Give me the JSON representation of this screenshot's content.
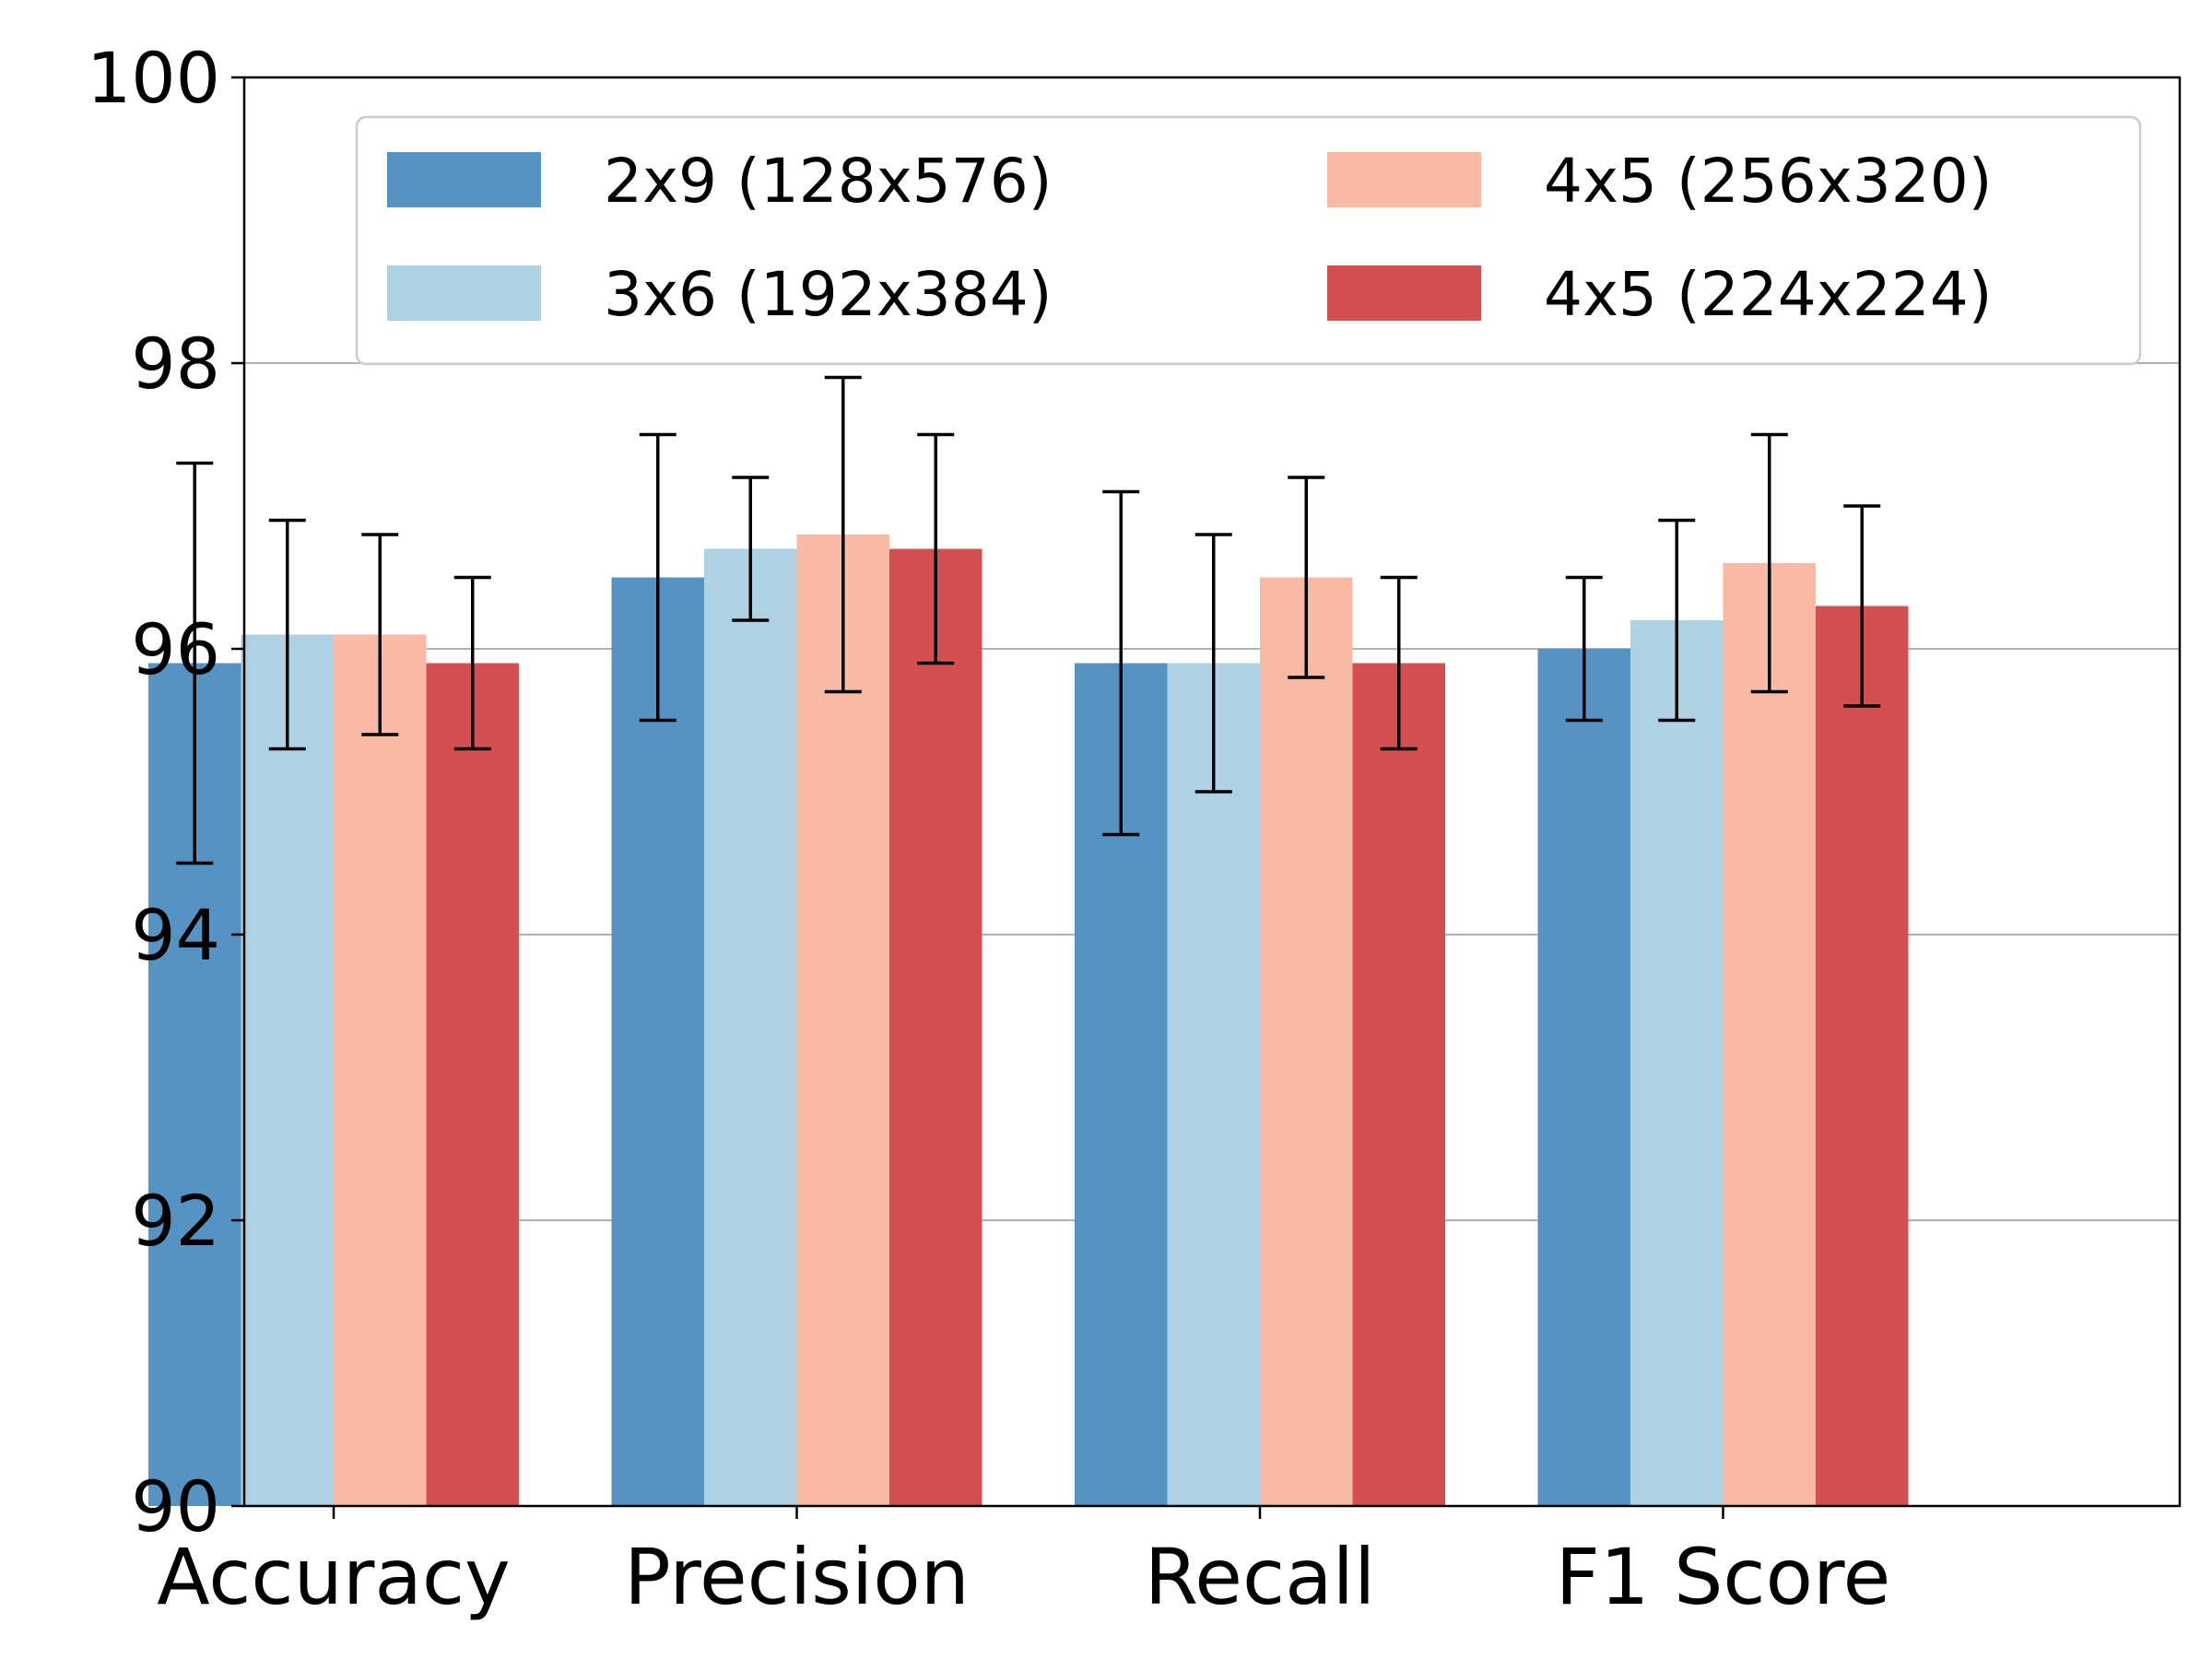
{
  "chart_data": {
    "type": "bar",
    "title": "",
    "xlabel": "",
    "ylabel": "",
    "categories": [
      "Accuracy",
      "Precision",
      "Recall",
      "F1 Score"
    ],
    "ylim": [
      90,
      100
    ],
    "yticks": [
      90,
      92,
      94,
      96,
      98,
      100
    ],
    "grid": "y",
    "legend_position": "top",
    "legend_columns": 2,
    "series": [
      {
        "name": "2x9 (128x576)",
        "color": "#5493c4",
        "values": [
          95.9,
          96.5,
          95.9,
          96.0
        ],
        "err_low": [
          94.5,
          95.5,
          94.7,
          95.5
        ],
        "err_high": [
          97.3,
          97.5,
          97.1,
          96.5
        ]
      },
      {
        "name": "3x6 (192x384)",
        "color": "#aed2e3",
        "values": [
          96.1,
          96.7,
          95.9,
          96.2
        ],
        "err_low": [
          95.3,
          96.2,
          95.0,
          95.5
        ],
        "err_high": [
          96.9,
          97.2,
          96.8,
          96.9
        ]
      },
      {
        "name": "4x5 (256x320)",
        "color": "#f8baa4",
        "values": [
          96.1,
          96.8,
          96.5,
          96.6
        ],
        "err_low": [
          95.4,
          95.7,
          95.8,
          95.7
        ],
        "err_high": [
          96.8,
          97.9,
          97.2,
          97.5
        ]
      },
      {
        "name": "4x5 (224x224)",
        "color": "#d44f50",
        "values": [
          95.9,
          96.7,
          95.9,
          96.3
        ],
        "err_low": [
          95.3,
          95.9,
          95.3,
          95.6
        ],
        "err_high": [
          96.5,
          97.5,
          96.5,
          97.0
        ]
      }
    ]
  }
}
